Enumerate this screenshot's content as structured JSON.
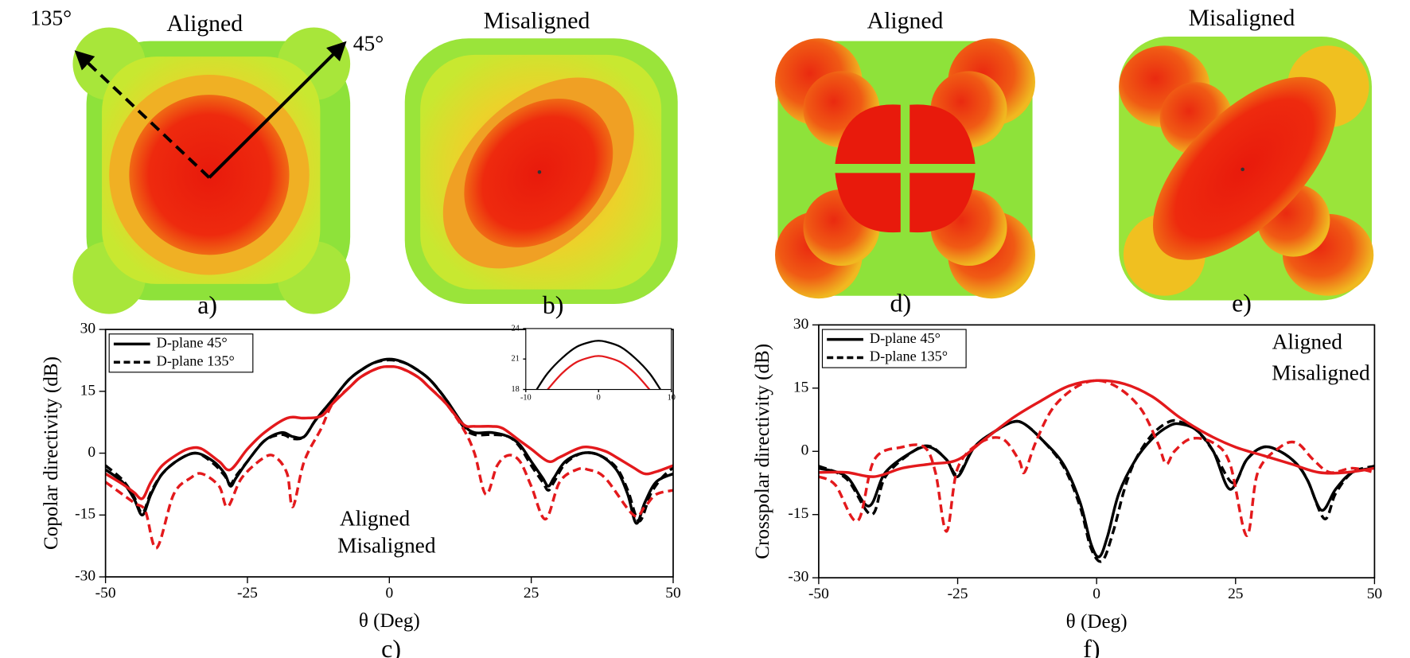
{
  "patterns": [
    {
      "title": "Aligned",
      "caption": "a)"
    },
    {
      "title": "Misaligned",
      "caption": "b)"
    },
    {
      "title": "Aligned",
      "caption": "d)"
    },
    {
      "title": "Misaligned",
      "caption": "e)"
    }
  ],
  "angles": [
    "135°",
    "45°"
  ],
  "chart_data": [
    {
      "type": "line",
      "caption": "c)",
      "xlabel": "θ (Deg)",
      "ylabel": "Copolar directivity (dB)",
      "xlim": [
        -50,
        50
      ],
      "ylim": [
        -30,
        30
      ],
      "xticks": [
        -50,
        -25,
        0,
        25,
        50
      ],
      "yticks": [
        -30,
        -15,
        0,
        15,
        30
      ],
      "legend": {
        "position": "upper left",
        "entries": [
          {
            "label": "D-plane 45°",
            "dash": "solid"
          },
          {
            "label": "D-plane 135°",
            "dash": "dashed"
          }
        ]
      },
      "annotations": [
        {
          "text": "Aligned",
          "color": "#000000"
        },
        {
          "text": "Misaligned",
          "color": "#e3191c"
        }
      ],
      "series": [
        {
          "color": "#000000",
          "dash": "solid",
          "x": [
            -50,
            -47,
            -45,
            -43.5,
            -42,
            -40,
            -37,
            -34,
            -31,
            -29,
            -28,
            -27,
            -25,
            -22,
            -19,
            -17,
            -15,
            -13,
            -10,
            -7,
            -4,
            -2,
            0,
            2,
            4,
            7,
            10,
            13,
            15,
            18,
            21,
            23,
            25,
            27,
            28,
            29,
            31,
            34,
            37,
            40,
            42,
            43.5,
            45,
            47,
            50
          ],
          "values": [
            -4,
            -7,
            -11,
            -15,
            -10,
            -5,
            -1.5,
            0,
            -2,
            -5,
            -8,
            -6,
            -2,
            3,
            5,
            4,
            4,
            8,
            13,
            18,
            21,
            22.3,
            22.8,
            22.3,
            21,
            18,
            13,
            7,
            5,
            5,
            4,
            2,
            -2,
            -6,
            -8,
            -6,
            -2,
            0,
            -0.5,
            -4,
            -10,
            -17,
            -12,
            -7,
            -5
          ]
        },
        {
          "color": "#000000",
          "dash": "dashed",
          "x": [
            -50,
            -47,
            -45,
            -43.5,
            -42,
            -40,
            -37,
            -34,
            -31,
            -29,
            -28,
            -27,
            -25,
            -22,
            -19,
            -17,
            -15,
            -13,
            -10,
            -7,
            -4,
            -2,
            0,
            2,
            4,
            7,
            10,
            13,
            15,
            18,
            21,
            23,
            25,
            27,
            28,
            29,
            31,
            34,
            37,
            40,
            42,
            44,
            46,
            48,
            50
          ],
          "values": [
            -3,
            -6.5,
            -10.5,
            -14.5,
            -9.5,
            -5,
            -1.5,
            0,
            -2.5,
            -5.5,
            -7.5,
            -5.5,
            -2,
            3,
            4.5,
            3.5,
            4,
            8,
            13,
            18,
            21,
            22.2,
            22.6,
            22.2,
            21,
            18,
            13,
            6.5,
            4.5,
            4.5,
            4,
            1.5,
            -3,
            -7,
            -9,
            -7,
            -2.5,
            0,
            -0.5,
            -3.5,
            -9,
            -16.5,
            -10,
            -6,
            -3.5
          ]
        },
        {
          "color": "#e3191c",
          "dash": "solid",
          "x": [
            -50,
            -47,
            -45,
            -43.5,
            -42,
            -40,
            -37,
            -35,
            -33,
            -30,
            -28,
            -25,
            -22,
            -18,
            -15,
            -12,
            -10,
            -7,
            -5,
            -2,
            0,
            2,
            5,
            7,
            10,
            13,
            15,
            18,
            20,
            23,
            25,
            28,
            30,
            33,
            35,
            38,
            40,
            43,
            45,
            47,
            50
          ],
          "values": [
            -5,
            -7.5,
            -9.5,
            -11,
            -7,
            -3,
            0,
            1.2,
            1,
            -2,
            -4,
            1,
            5,
            8.5,
            8.5,
            9,
            12,
            16,
            18.5,
            20.6,
            21,
            20.6,
            18.5,
            16,
            12,
            7,
            6.5,
            6.5,
            6,
            3,
            1,
            -2,
            -1,
            1,
            1.5,
            0.5,
            -1,
            -3.5,
            -5,
            -4.5,
            -3
          ]
        },
        {
          "color": "#e3191c",
          "dash": "dashed",
          "x": [
            -50,
            -45,
            -43,
            -41,
            -38,
            -35,
            -33,
            -30,
            -28.5,
            -26,
            -22,
            -20,
            -18,
            -17,
            -15,
            -12,
            -10,
            -7,
            -5,
            -2,
            0,
            2,
            5,
            7,
            10,
            13,
            15,
            17,
            19,
            21,
            23,
            25,
            27.5,
            30,
            33,
            35,
            38,
            43,
            45,
            47,
            50
          ],
          "values": [
            -7,
            -12,
            -14,
            -23,
            -10,
            -6,
            -5,
            -8,
            -13,
            -6,
            -1,
            -1,
            -5,
            -13,
            -2,
            6,
            12,
            16,
            18.5,
            20.6,
            21,
            20.6,
            18.5,
            16,
            12,
            6,
            0,
            -10,
            -3,
            -0.5,
            -2,
            -8,
            -16,
            -7,
            -4,
            -4,
            -6,
            -15,
            -13,
            -10,
            -9
          ]
        }
      ],
      "inset": {
        "type": "line",
        "xlim": [
          -10,
          10
        ],
        "ylim": [
          18,
          24
        ],
        "xticks": [
          -10,
          0,
          10
        ],
        "yticks": [
          18,
          21,
          24
        ],
        "series": [
          {
            "color": "#000000",
            "dash": "solid",
            "x": [
              -8.5,
              -7,
              -5,
              -3,
              -1,
              0,
              1,
              3,
              5,
              7,
              8.5
            ],
            "values": [
              18,
              19.6,
              21.1,
              22.2,
              22.7,
              22.8,
              22.7,
              22.2,
              21.1,
              19.6,
              18
            ]
          },
          {
            "color": "#e3191c",
            "dash": "solid",
            "x": [
              -7,
              -5,
              -3,
              -1,
              0,
              1,
              3,
              5,
              7
            ],
            "values": [
              18,
              19.6,
              20.7,
              21.2,
              21.3,
              21.2,
              20.7,
              19.6,
              18
            ]
          }
        ]
      }
    },
    {
      "type": "line",
      "caption": "f)",
      "xlabel": "θ (Deg)",
      "ylabel": "Crosspolar directivity (dB)",
      "xlim": [
        -50,
        50
      ],
      "ylim": [
        -30,
        30
      ],
      "xticks": [
        -50,
        -25,
        0,
        25,
        50
      ],
      "yticks": [
        -30,
        -15,
        0,
        15,
        30
      ],
      "legend": {
        "position": "upper left",
        "entries": [
          {
            "label": "D-plane 45°",
            "dash": "solid"
          },
          {
            "label": "D-plane 135°",
            "dash": "dashed"
          }
        ]
      },
      "annotations": [
        {
          "text": "Aligned",
          "color": "#000000"
        },
        {
          "text": "Misaligned",
          "color": "#e3191c"
        }
      ],
      "series": [
        {
          "color": "#000000",
          "dash": "solid",
          "x": [
            -50,
            -45,
            -41,
            -38,
            -33,
            -30,
            -27,
            -25,
            -22,
            -18,
            -15,
            -13,
            -10,
            -6,
            -3,
            -1,
            0.5,
            2,
            4,
            7,
            10,
            13,
            15,
            18,
            21,
            24,
            27,
            30,
            33,
            36,
            38,
            40.5,
            43,
            46,
            50
          ],
          "values": [
            -4,
            -6,
            -13,
            -5,
            0,
            1,
            -2,
            -6,
            1,
            5,
            7,
            6.5,
            3,
            -3,
            -12,
            -22,
            -25,
            -20,
            -10,
            -2,
            3,
            6,
            6.5,
            5,
            0,
            -9,
            -2,
            1,
            0,
            -3,
            -7,
            -14,
            -9,
            -5,
            -4
          ]
        },
        {
          "color": "#000000",
          "dash": "dashed",
          "x": [
            -50,
            -45,
            -40.5,
            -38,
            -33,
            -30,
            -27,
            -25,
            -22,
            -18,
            -15,
            -13,
            -10,
            -6,
            -3,
            -1,
            1,
            3,
            5,
            7,
            10,
            13,
            15,
            18,
            21,
            24.5,
            27,
            30,
            33,
            36,
            38,
            41,
            43,
            46,
            50
          ],
          "values": [
            -3.5,
            -6.5,
            -15,
            -6,
            0,
            1.2,
            -2,
            -5.5,
            1,
            5,
            7,
            6.5,
            3,
            -3.5,
            -13,
            -23,
            -26,
            -19,
            -9,
            -2,
            4,
            7,
            7,
            5,
            0,
            -7.5,
            -2,
            1,
            0,
            -3,
            -7,
            -16,
            -10,
            -5,
            -3.5
          ]
        },
        {
          "color": "#e3191c",
          "dash": "solid",
          "x": [
            -50,
            -45,
            -40,
            -35,
            -30,
            -25,
            -20,
            -15,
            -10,
            -5,
            0,
            5,
            10,
            15,
            20,
            25,
            30,
            35,
            40,
            45,
            50
          ],
          "values": [
            -5,
            -5,
            -6,
            -4,
            -3,
            -2,
            3,
            8,
            12,
            15.5,
            16.8,
            16,
            13,
            8,
            4,
            1,
            -1,
            -3,
            -5,
            -5,
            -4
          ]
        },
        {
          "color": "#e3191c",
          "dash": "dashed",
          "x": [
            -50,
            -47,
            -43,
            -40,
            -35,
            -31,
            -29,
            -27,
            -25,
            -21,
            -17,
            -14,
            -13,
            -11,
            -8,
            -4,
            0,
            4,
            8,
            11,
            12.5,
            14,
            17,
            21,
            24,
            27,
            29,
            33,
            36,
            39,
            42,
            46,
            50
          ],
          "values": [
            -6,
            -8,
            -16.5,
            -2,
            1,
            1,
            -5,
            -19,
            -4,
            2,
            3,
            -2,
            -5,
            2,
            10,
            15,
            16.8,
            15,
            10,
            2,
            -3,
            0,
            3,
            2,
            -3,
            -20,
            -5,
            1,
            2,
            -2,
            -5,
            -4,
            -5
          ]
        }
      ]
    }
  ]
}
